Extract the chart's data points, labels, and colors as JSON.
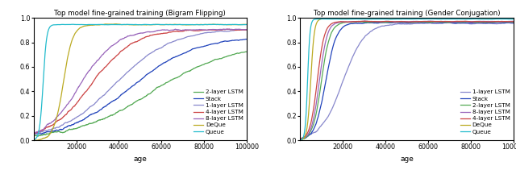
{
  "title_left": "Top model fine-grained training (Bigram Flipping)",
  "title_right": "Top model fine-grained training (Gender Conjugation)",
  "xlabel": "age",
  "ylim": [
    0.0,
    1.0
  ],
  "xlim": [
    0,
    100000
  ],
  "xticks": [
    20000,
    40000,
    60000,
    80000,
    100000
  ],
  "yticks": [
    0.0,
    0.2,
    0.4,
    0.6,
    0.8,
    1.0
  ],
  "legend_labels": [
    "1-layer LSTM",
    "2-layer LSTM",
    "4-layer LSTM",
    "8-layer LSTM",
    "DeQue",
    "Queue",
    "Stack"
  ],
  "colors": {
    "1-layer LSTM": "#8888cc",
    "2-layer LSTM": "#55aa55",
    "4-layer LSTM": "#cc4444",
    "8-layer LSTM": "#9966bb",
    "DeQue": "#bbaa22",
    "Queue": "#22bbcc",
    "Stack": "#2244bb"
  },
  "n_points": 1000
}
